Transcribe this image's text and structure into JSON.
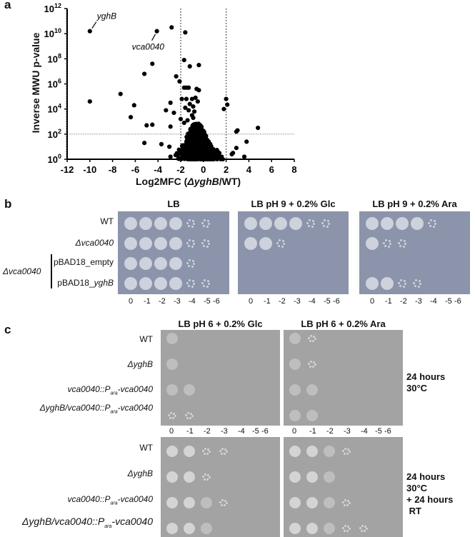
{
  "panels": {
    "a": {
      "letter": "a"
    },
    "b": {
      "letter": "b"
    },
    "c": {
      "letter": "c"
    }
  },
  "chart_data": {
    "type": "scatter",
    "title": "",
    "xlabel_parts": [
      "Log2MFC (",
      "ΔyghB",
      "/WT)"
    ],
    "xlabel": "Log2MFC (ΔyghB/WT)",
    "ylabel": "Inverse MWU p-value",
    "xlim": [
      -12,
      8
    ],
    "ylim_log10": [
      0,
      12
    ],
    "x_ticks": [
      -12,
      -10,
      -8,
      -6,
      -4,
      -2,
      0,
      2,
      4,
      6,
      8
    ],
    "y_ticks": [
      "10^0",
      "10^2",
      "10^4",
      "10^6",
      "10^8",
      "10^10",
      "10^12"
    ],
    "y_tick_exponents": [
      0,
      2,
      4,
      6,
      8,
      10,
      12
    ],
    "thresholds": {
      "vertical_x": [
        -2,
        2
      ],
      "horizontal_log10y": 2
    },
    "annotations": [
      {
        "label": "yghB",
        "x": -10,
        "log10y": 10.2
      },
      {
        "label": "vca0040",
        "x": -4.1,
        "log10y": 10.2
      }
    ],
    "points_log10y": [
      [
        -10,
        10.2
      ],
      [
        -4.1,
        10.2
      ],
      [
        -2.8,
        10.5
      ],
      [
        -1.6,
        10.1
      ],
      [
        -1.7,
        7.9
      ],
      [
        -4.5,
        7.6
      ],
      [
        -0.4,
        7.5
      ],
      [
        -1.2,
        7.4
      ],
      [
        -5.2,
        6.8
      ],
      [
        -2.4,
        6.6
      ],
      [
        -2.1,
        6.2
      ],
      [
        -7.3,
        5.2
      ],
      [
        -10,
        4.6
      ],
      [
        -6.1,
        4.3
      ],
      [
        -2.9,
        4.5
      ],
      [
        -3.3,
        3.9
      ],
      [
        -2.6,
        3.7
      ],
      [
        -6.4,
        3.35
      ],
      [
        -5.0,
        2.7
      ],
      [
        -4.5,
        2.75
      ],
      [
        -2.9,
        2.6
      ],
      [
        -5.2,
        1.3
      ],
      [
        -3.7,
        1.2
      ],
      [
        -2.9,
        0.2
      ],
      [
        -3.0,
        1.0
      ],
      [
        4.8,
        2.5
      ],
      [
        3.8,
        1.4
      ],
      [
        2.9,
        2.2
      ],
      [
        3.0,
        2.3
      ],
      [
        3.6,
        0.2
      ],
      [
        2.9,
        0.9
      ],
      [
        2.0,
        4.8
      ],
      [
        2.1,
        4.35
      ],
      [
        1.8,
        4.0
      ],
      [
        2.5,
        0.4
      ],
      [
        2.6,
        0.5
      ],
      [
        -1.7,
        5.7
      ],
      [
        -1.5,
        5.7
      ],
      [
        -1.3,
        5.7
      ],
      [
        -0.6,
        5.6
      ],
      [
        -0.4,
        5.5
      ],
      [
        -1.9,
        4.8
      ],
      [
        -1.5,
        4.8
      ],
      [
        -1.0,
        4.8
      ],
      [
        -0.7,
        4.9
      ],
      [
        -0.5,
        4.6
      ],
      [
        -1.2,
        4.4
      ],
      [
        -0.9,
        4.2
      ],
      [
        -1.6,
        4.1
      ],
      [
        -1.3,
        3.9
      ],
      [
        -0.8,
        3.8
      ],
      [
        -1.0,
        3.5
      ],
      [
        -0.9,
        3.3
      ],
      [
        -1.4,
        3.1
      ],
      [
        -2.0,
        3.2
      ],
      [
        -1.7,
        2.9
      ]
    ],
    "dense_cluster": {
      "x_range": [
        -2.6,
        2.1
      ],
      "log10y_range": [
        0,
        2.9
      ],
      "count": 900
    }
  },
  "panel_b": {
    "strains": [
      {
        "label": "WT",
        "italic": false
      },
      {
        "label": "Δvca0040",
        "italic": true
      },
      {
        "label": "pBAD18_empty",
        "italic": false
      },
      {
        "label_prefix": "pBAD18_",
        "label_italic": "yghB"
      }
    ],
    "bracket_label": "Δvca0040",
    "plates": [
      {
        "title": "LB"
      },
      {
        "title": "LB pH 9 + 0.2% Glc"
      },
      {
        "title": "LB pH 9 + 0.2% Ara"
      }
    ],
    "dilutions": [
      "0",
      "-1",
      "-2",
      "-3",
      "-4",
      "-5",
      "-6"
    ]
  },
  "panel_c": {
    "strains": [
      {
        "text": "WT"
      },
      {
        "text": "ΔyghB"
      },
      {
        "pre": "vca0040::P",
        "sub": "ara",
        "post": "-vca0040"
      },
      {
        "pre": "ΔyghB/vca0040::P",
        "sub": "ara",
        "post": "-vca0040"
      }
    ],
    "plates": [
      {
        "title": "LB pH 6 + 0.2% Glc"
      },
      {
        "title": "LB pH 6 + 0.2% Ara"
      }
    ],
    "dilutions": [
      "0",
      "-1",
      "-2",
      "-3",
      "-4",
      "-5",
      "-6"
    ],
    "conditions": [
      {
        "text": "24 hours\n30°C"
      },
      {
        "text": "24 hours\n30°C\n+ 24 hours\n RT"
      }
    ]
  },
  "colors": {
    "plate_blue": "#8b94aa",
    "plate_grey": "#a3a3a3",
    "colony_blue": "#cdd2dc",
    "colony_grey": "#d2d4d6",
    "point": "#000000"
  }
}
